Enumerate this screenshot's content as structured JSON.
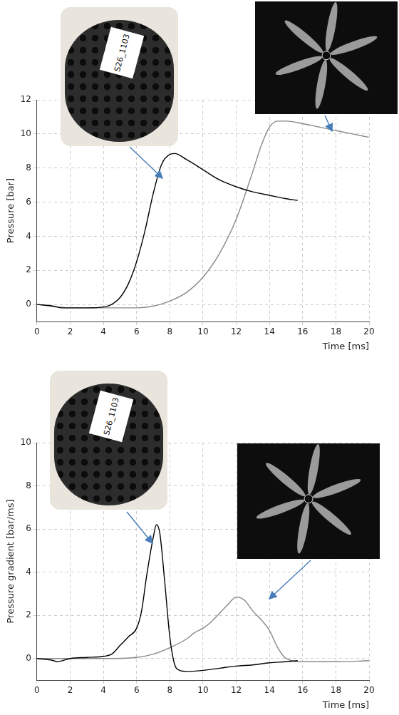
{
  "chart_data": [
    {
      "type": "line",
      "y_label": "Pressure [bar]",
      "x_label": "Time [ms]",
      "xlim": [
        0,
        20
      ],
      "xticks": [
        0,
        2,
        4,
        6,
        8,
        10,
        12,
        14,
        16,
        18,
        20
      ],
      "ylim": [
        -1,
        12
      ],
      "yticks": [
        0,
        2,
        4,
        6,
        8,
        10,
        12
      ],
      "grid": true,
      "annotations": [
        "S26_1103"
      ],
      "series": [
        {
          "color": "#000000",
          "x": [
            0,
            1,
            1.5,
            2,
            3,
            4,
            4.5,
            5,
            5.5,
            6,
            6.5,
            7,
            7.5,
            8,
            8.3,
            9,
            10,
            11,
            12,
            13,
            14,
            15,
            15.7
          ],
          "values": [
            0,
            -0.1,
            -0.2,
            -0.2,
            -0.2,
            -0.15,
            0,
            0.4,
            1.2,
            2.5,
            4.3,
            6.5,
            8.2,
            8.8,
            8.85,
            8.5,
            7.9,
            7.3,
            6.9,
            6.6,
            6.4,
            6.2,
            6.1
          ]
        },
        {
          "color": "#888888",
          "x": [
            0,
            2,
            6,
            7,
            8,
            9,
            10,
            11,
            12,
            13,
            13.5,
            14,
            14.5,
            15,
            16,
            17,
            18,
            19,
            20
          ],
          "values": [
            0,
            -0.2,
            -0.2,
            -0.1,
            0.2,
            0.7,
            1.6,
            3.0,
            5.0,
            7.8,
            9.3,
            10.4,
            10.75,
            10.75,
            10.6,
            10.4,
            10.2,
            10.0,
            9.8
          ]
        }
      ]
    },
    {
      "type": "line",
      "y_label": "Pressure gradient [bar/ms]",
      "x_label": "Time [ms]",
      "xlim": [
        0,
        20
      ],
      "xticks": [
        0,
        2,
        4,
        6,
        8,
        10,
        12,
        14,
        16,
        18,
        20
      ],
      "ylim": [
        -1,
        10
      ],
      "yticks": [
        0,
        2,
        4,
        6,
        8,
        10
      ],
      "grid": true,
      "annotations": [
        "S26_1103"
      ],
      "series": [
        {
          "color": "#000000",
          "x": [
            0,
            1,
            1.2,
            2,
            3,
            4,
            4.5,
            5,
            5.5,
            6,
            6.3,
            6.6,
            7,
            7.2,
            7.4,
            7.7,
            8,
            8.3,
            8.6,
            9,
            10,
            11,
            12,
            13,
            14,
            15,
            15.7
          ],
          "values": [
            0,
            -0.1,
            -0.15,
            0,
            0.05,
            0.1,
            0.2,
            0.6,
            1.0,
            1.4,
            2.2,
            3.8,
            5.6,
            6.2,
            5.8,
            3.5,
            1.0,
            -0.3,
            -0.55,
            -0.6,
            -0.55,
            -0.45,
            -0.35,
            -0.3,
            -0.2,
            -0.15,
            -0.1
          ]
        },
        {
          "color": "#888888",
          "x": [
            0,
            4,
            6,
            7,
            8,
            9,
            9.5,
            10,
            10.5,
            11,
            11.5,
            12,
            12.5,
            13,
            13.5,
            14,
            14.5,
            15,
            16,
            18,
            20
          ],
          "values": [
            0,
            0,
            0.05,
            0.2,
            0.5,
            0.9,
            1.2,
            1.4,
            1.7,
            2.1,
            2.5,
            2.85,
            2.7,
            2.2,
            1.8,
            1.3,
            0.5,
            0,
            -0.15,
            -0.15,
            -0.1
          ]
        }
      ]
    }
  ]
}
